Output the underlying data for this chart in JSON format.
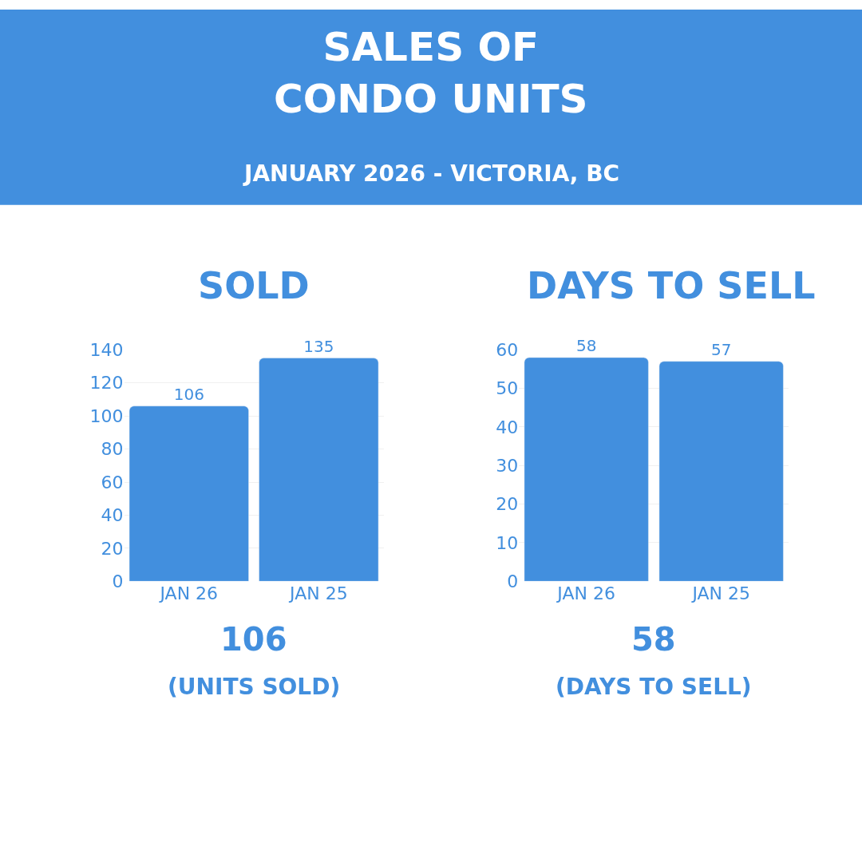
{
  "chart_data": [
    {
      "type": "other",
      "title": "SALES OF\nCONDO UNITS",
      "subtitle": "JANUARY 2026 - VICTORIA, BC"
    },
    {
      "type": "bar",
      "title": "SOLD",
      "categories": [
        "JAN 26",
        "JAN 25"
      ],
      "values": [
        106,
        135
      ],
      "color": "#428fde",
      "ylim": [
        0,
        140
      ],
      "yticks": [
        0,
        20,
        40,
        60,
        80,
        100,
        120,
        140
      ],
      "grid": "y",
      "data_labels": true,
      "annotations": [
        "106",
        "(UNITS SOLD)"
      ]
    },
    {
      "type": "bar",
      "title": "DAYS TO SELL",
      "categories": [
        "JAN 26",
        "JAN 25"
      ],
      "values": [
        58,
        57
      ],
      "color": "#428fde",
      "ylim": [
        0,
        60
      ],
      "yticks": [
        0,
        10,
        20,
        30,
        40,
        50,
        60
      ],
      "grid": "y",
      "data_labels": true,
      "annotations": [
        "58",
        "(DAYS TO SELL)"
      ]
    }
  ]
}
